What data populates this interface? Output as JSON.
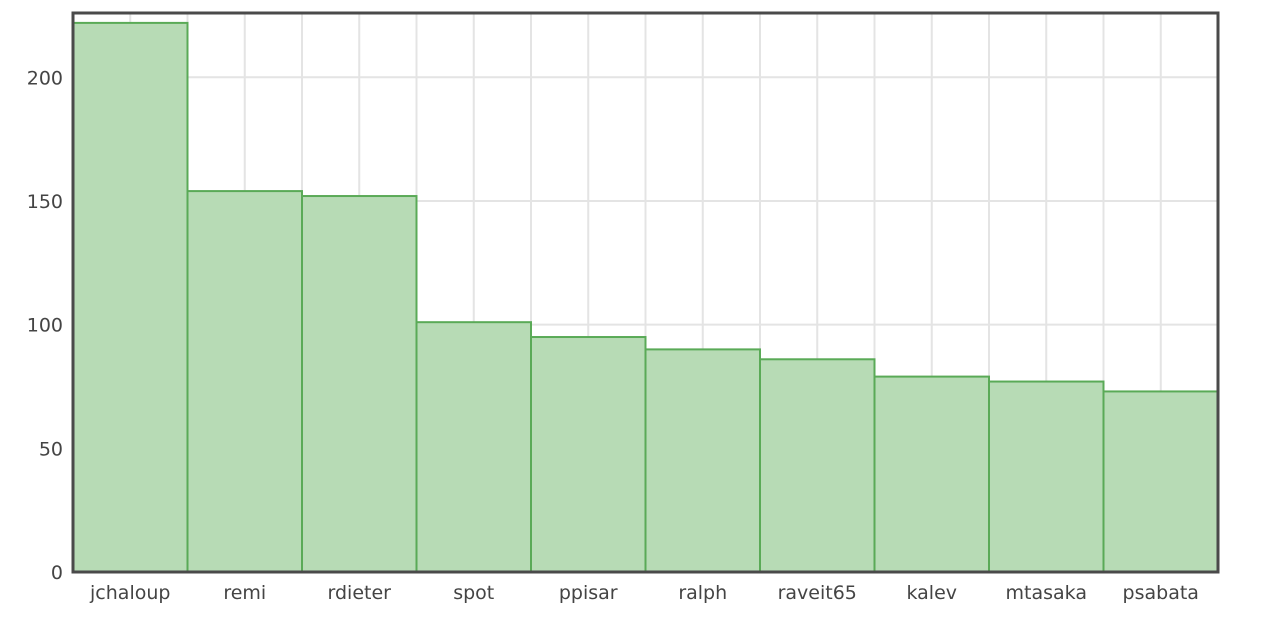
{
  "chart_data": {
    "type": "bar",
    "title": "",
    "xlabel": "",
    "ylabel": "",
    "categories": [
      "jchaloup",
      "remi",
      "rdieter",
      "spot",
      "ppisar",
      "ralph",
      "raveit65",
      "kalev",
      "mtasaka",
      "psabata"
    ],
    "values": [
      222,
      154,
      152,
      101,
      95,
      90,
      86,
      79,
      77,
      73
    ],
    "ylim": [
      0,
      226
    ],
    "yticks": [
      0,
      50,
      100,
      150,
      200
    ],
    "grid": true,
    "legend": "none",
    "colors": {
      "bar_fill": "#b7dbb5",
      "bar_stroke": "#5aaa57",
      "grid": "#e4e4e4",
      "frame": "#4a4a4a"
    }
  }
}
